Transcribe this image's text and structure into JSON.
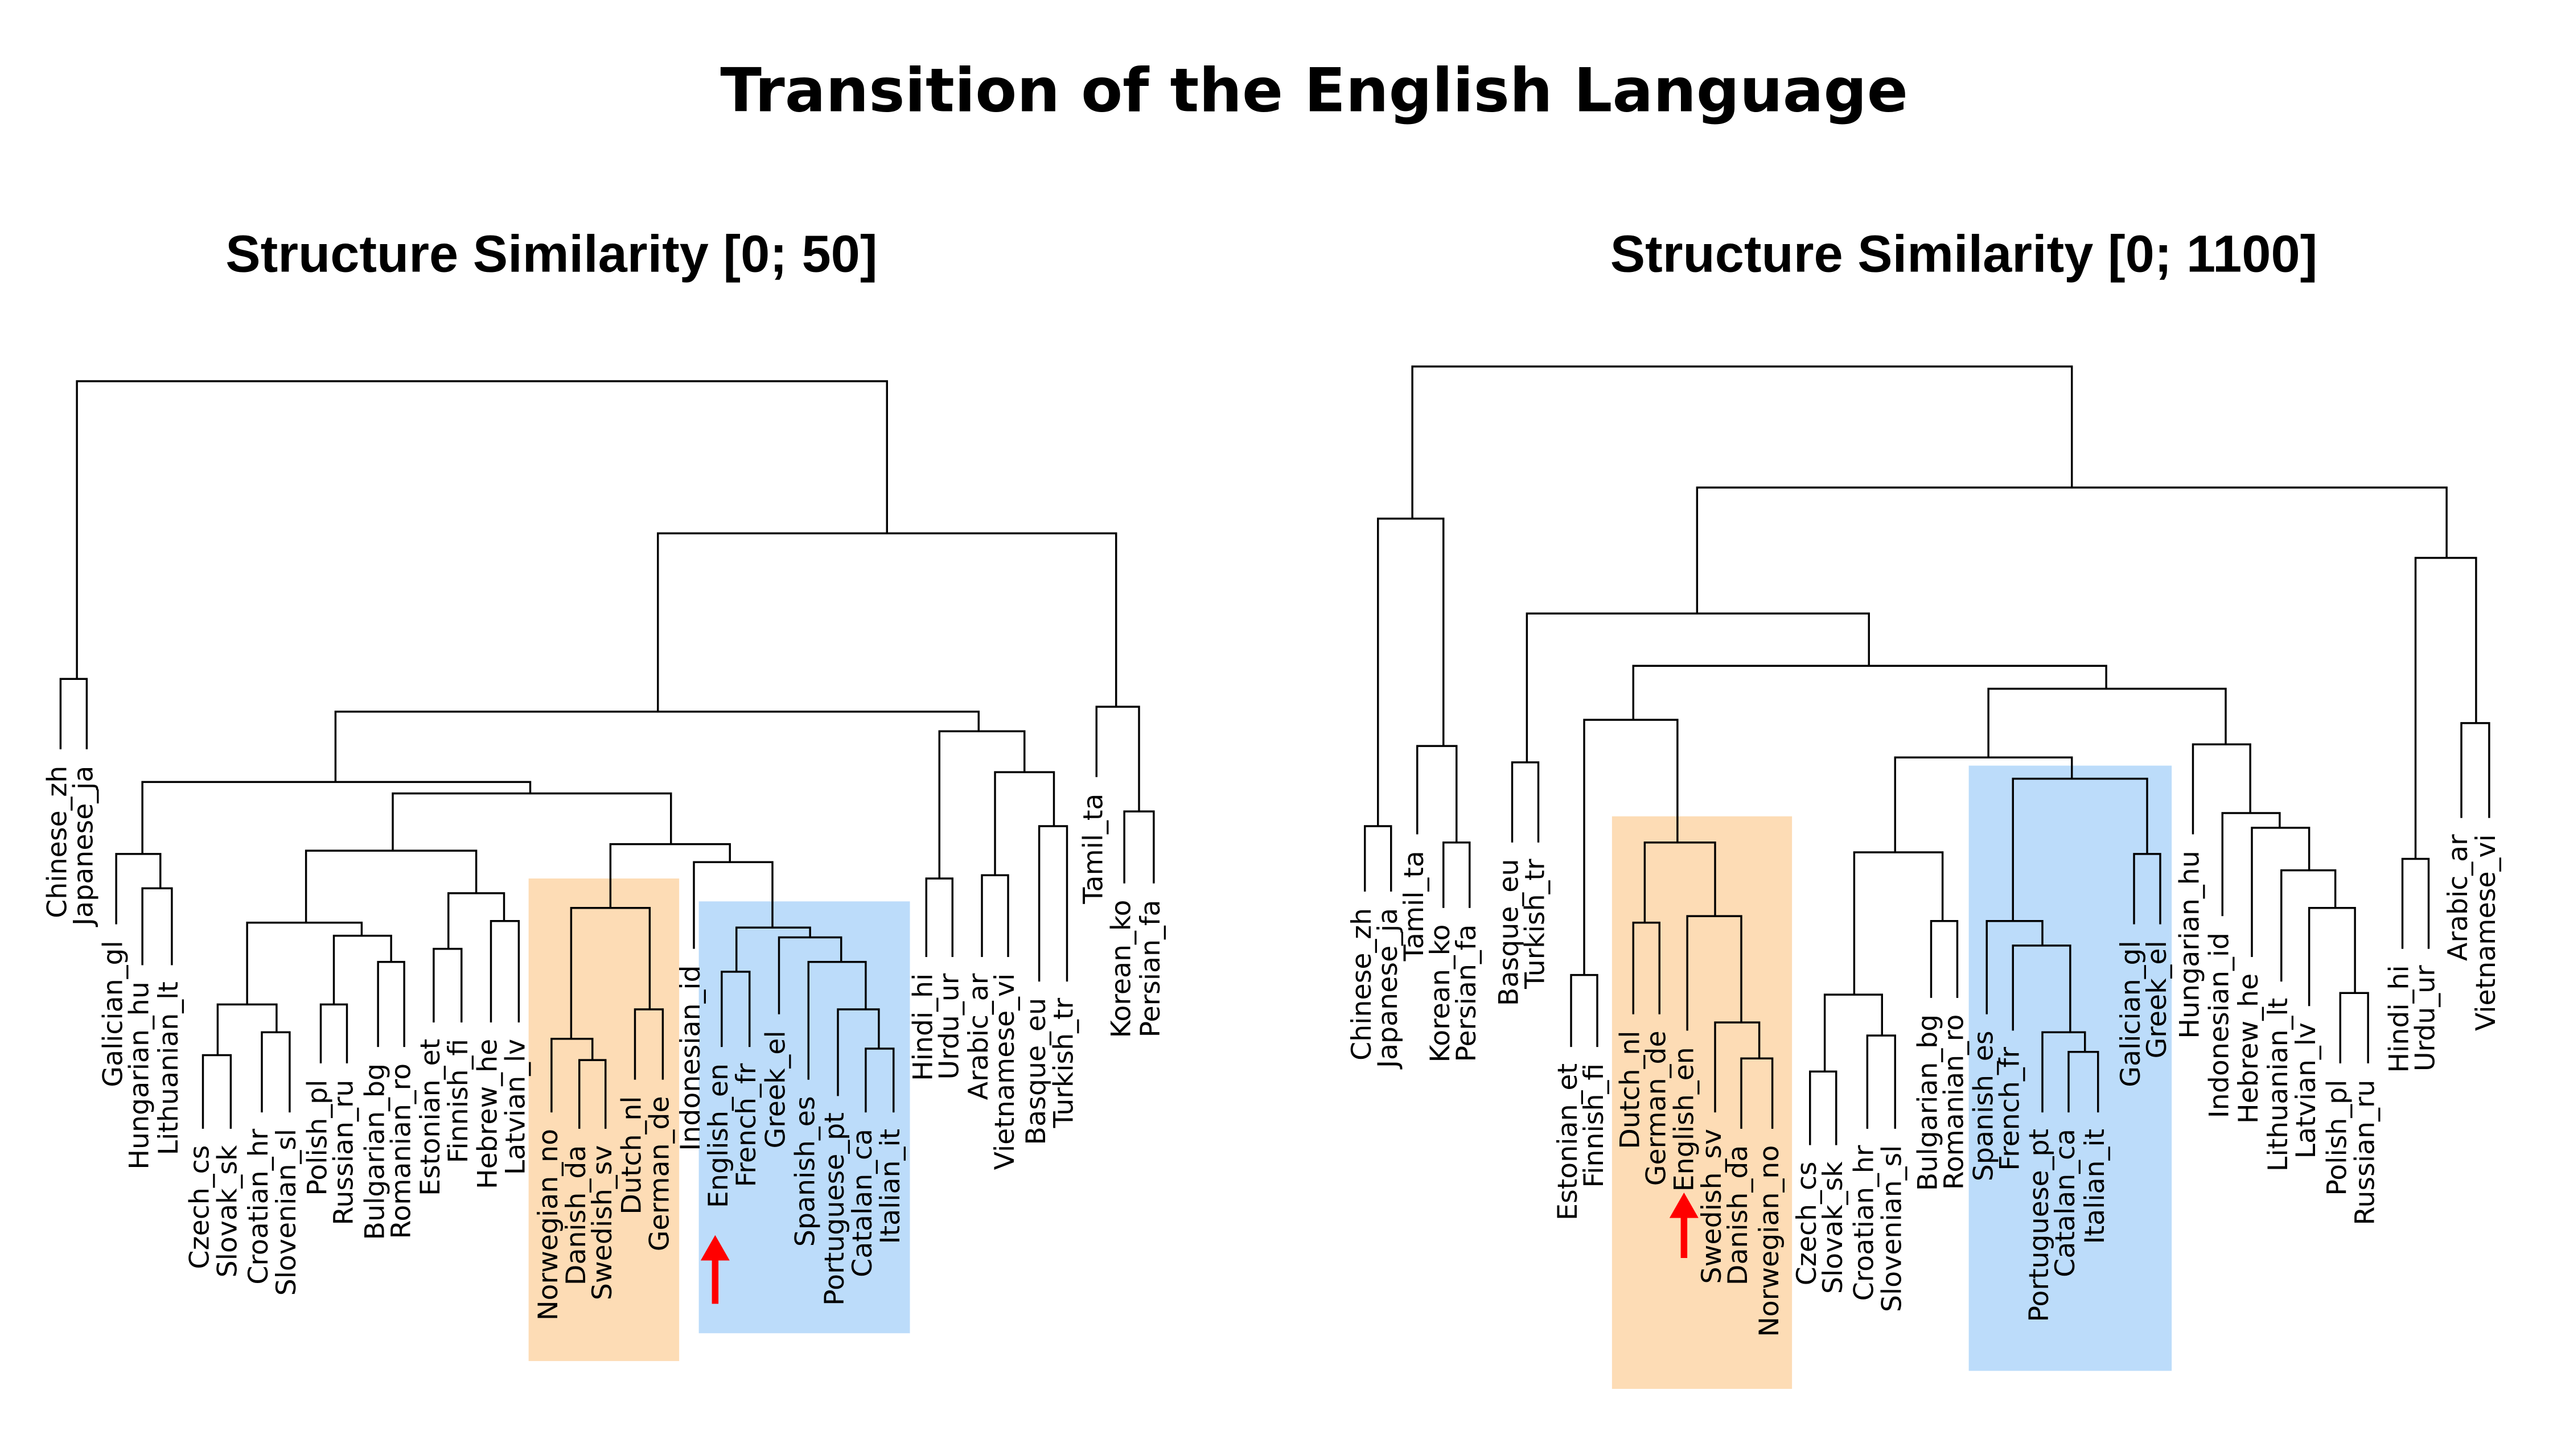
{
  "title": "Transition of the English Language",
  "panels": [
    {
      "title": "Structure Similarity [0; 50]",
      "leaves": [
        "Chinese_zh",
        "Japanese_ja",
        "Galician_gl",
        "Hungarian_hu",
        "Lithuanian_lt",
        "Czech_cs",
        "Slovak_sk",
        "Croatian_hr",
        "Slovenian_sl",
        "Polish_pl",
        "Russian_ru",
        "Bulgarian_bg",
        "Romanian_ro",
        "Estonian_et",
        "Finnish_fi",
        "Hebrew_he",
        "Latvian_lv",
        "Norwegian_no",
        "Danish_da",
        "Swedish_sv",
        "Dutch_nl",
        "German_de",
        "Indonesian_id",
        "English_en",
        "French_fr",
        "Greek_el",
        "Spanish_es",
        "Portuguese_pt",
        "Catalan_ca",
        "Italian_it",
        "Hindi_hi",
        "Urdu_ur",
        "Arabic_ar",
        "Vietnamese_vi",
        "Basque_eu",
        "Turkish_tr",
        "Tamil_ta",
        "Korean_ko",
        "Persian_fa"
      ]
    },
    {
      "title": "Structure Similarity [0; 1100]",
      "leaves": [
        "Chinese_zh",
        "Japanese_ja",
        "Tamil_ta",
        "Korean_ko",
        "Persian_fa",
        "Basque_eu",
        "Turkish_tr",
        "Estonian_et",
        "Finnish_fi",
        "Dutch_nl",
        "German_de",
        "English_en",
        "Swedish_sv",
        "Danish_da",
        "Norwegian_no",
        "Czech_cs",
        "Slovak_sk",
        "Croatian_hr",
        "Slovenian_sl",
        "Bulgarian_bg",
        "Romanian_ro",
        "Spanish_es",
        "French_fr",
        "Portuguese_pt",
        "Catalan_ca",
        "Italian_it",
        "Galician_gl",
        "Greek_el",
        "Hungarian_hu",
        "Indonesian_id",
        "Hebrew_he",
        "Lithuanian_lt",
        "Latvian_lv",
        "Polish_pl",
        "Russian_ru",
        "Hindi_hi",
        "Urdu_ur",
        "Arabic_ar",
        "Vietnamese_vi"
      ]
    }
  ]
}
